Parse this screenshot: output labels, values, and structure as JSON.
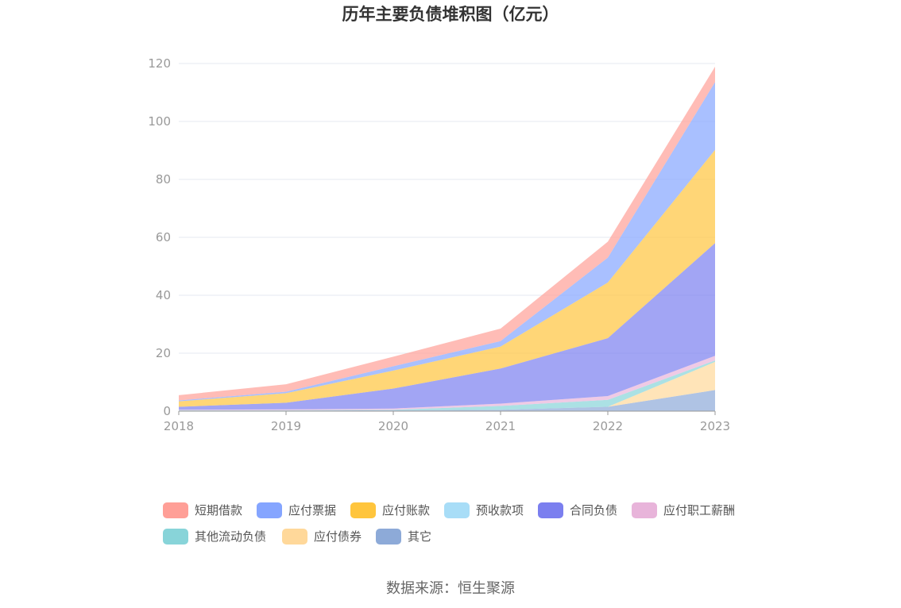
{
  "chart_data": {
    "type": "area",
    "stacked": true,
    "title": "历年主要负债堆积图（亿元）",
    "categories": [
      "2018",
      "2019",
      "2020",
      "2021",
      "2022",
      "2023"
    ],
    "ylim": [
      0,
      120
    ],
    "yticks": [
      "0",
      "20",
      "40",
      "60",
      "80",
      "100",
      "120"
    ],
    "grid": true,
    "legend_position": "bottom",
    "series": [
      {
        "name": "其它",
        "color": "#8DAAD8",
        "values": [
          0.2,
          0.2,
          0.3,
          0.5,
          1.5,
          7.3
        ]
      },
      {
        "name": "应付债券",
        "color": "#FFD89A",
        "values": [
          0,
          0,
          0,
          0,
          0,
          9.7
        ]
      },
      {
        "name": "其他流动负债",
        "color": "#88D4D9",
        "values": [
          0.1,
          0.1,
          0.2,
          1.3,
          2.4,
          0.5
        ]
      },
      {
        "name": "应付职工薪酬",
        "color": "#E8B4DA",
        "values": [
          0.2,
          0.3,
          0.4,
          0.8,
          1.3,
          1.6
        ]
      },
      {
        "name": "合同负债",
        "color": "#7B7FEF",
        "values": [
          1.0,
          2.3,
          6.9,
          12.1,
          20.0,
          38.9
        ]
      },
      {
        "name": "预收款项",
        "color": "#A8DDF7",
        "values": [
          0,
          0,
          0,
          0,
          0,
          0
        ]
      },
      {
        "name": "应付账款",
        "color": "#FFC53D",
        "values": [
          1.9,
          3.3,
          6.2,
          7.6,
          19.2,
          32.2
        ]
      },
      {
        "name": "应付票据",
        "color": "#85A5FF",
        "values": [
          0.3,
          0.5,
          1.5,
          1.9,
          8.6,
          23.4
        ]
      },
      {
        "name": "短期借款",
        "color": "#FF9F97",
        "values": [
          1.8,
          2.6,
          3.3,
          4.3,
          5.5,
          5.3
        ]
      }
    ],
    "legend": [
      {
        "name": "短期借款",
        "color": "#FF9F97"
      },
      {
        "name": "应付票据",
        "color": "#85A5FF"
      },
      {
        "name": "应付账款",
        "color": "#FFC53D"
      },
      {
        "name": "预收款项",
        "color": "#A8DDF7"
      },
      {
        "name": "合同负债",
        "color": "#7B7FEF"
      },
      {
        "name": "应付职工薪酬",
        "color": "#E8B4DA"
      },
      {
        "name": "其他流动负债",
        "color": "#88D4D9"
      },
      {
        "name": "应付债券",
        "color": "#FFD89A"
      },
      {
        "name": "其它",
        "color": "#8DAAD8"
      }
    ]
  },
  "source": "数据来源：恒生聚源"
}
